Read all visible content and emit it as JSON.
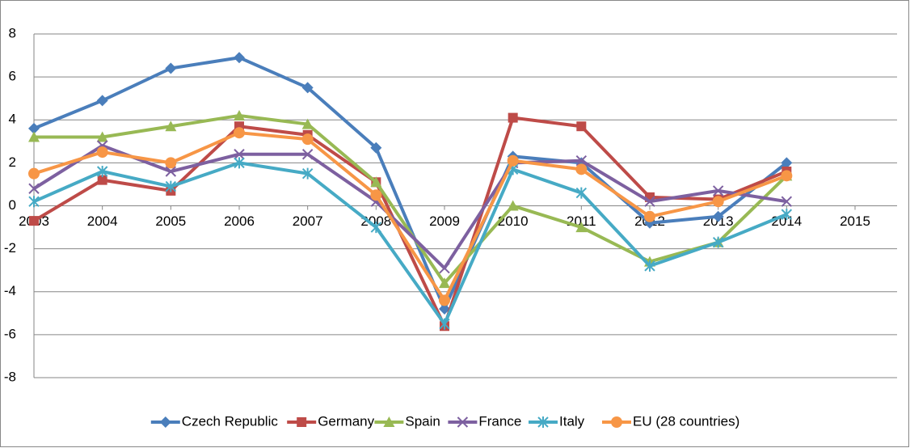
{
  "chart_data": {
    "type": "line",
    "x": [
      2003,
      2004,
      2005,
      2006,
      2007,
      2008,
      2009,
      2010,
      2011,
      2012,
      2013,
      2014
    ],
    "xlim": [
      2003,
      2015
    ],
    "xticks": [
      2003,
      2004,
      2005,
      2006,
      2007,
      2008,
      2009,
      2010,
      2011,
      2012,
      2013,
      2014,
      2015
    ],
    "ylim": [
      -8,
      8
    ],
    "yticks": [
      -8,
      -6,
      -4,
      -2,
      0,
      2,
      4,
      6,
      8
    ],
    "grid": true,
    "legend": "bottom",
    "series": [
      {
        "name": "Czech Republic",
        "color": "#4a7ebb",
        "marker": "diamond",
        "values": [
          3.6,
          4.9,
          6.4,
          6.9,
          5.5,
          2.7,
          -4.8,
          2.3,
          2.0,
          -0.8,
          -0.5,
          2.0
        ]
      },
      {
        "name": "Germany",
        "color": "#be4b48",
        "marker": "square",
        "values": [
          -0.7,
          1.2,
          0.7,
          3.7,
          3.3,
          1.1,
          -5.6,
          4.1,
          3.7,
          0.4,
          0.3,
          1.6
        ]
      },
      {
        "name": "Spain",
        "color": "#98b954",
        "marker": "triangle",
        "values": [
          3.2,
          3.2,
          3.7,
          4.2,
          3.8,
          1.1,
          -3.6,
          0.0,
          -1.0,
          -2.6,
          -1.7,
          1.4
        ]
      },
      {
        "name": "France",
        "color": "#7d60a0",
        "marker": "x",
        "values": [
          0.8,
          2.8,
          1.6,
          2.4,
          2.4,
          0.2,
          -2.9,
          2.0,
          2.1,
          0.2,
          0.7,
          0.2
        ]
      },
      {
        "name": "Italy",
        "color": "#46aac5",
        "marker": "star",
        "values": [
          0.2,
          1.6,
          0.9,
          2.0,
          1.5,
          -1.0,
          -5.5,
          1.7,
          0.6,
          -2.8,
          -1.7,
          -0.4
        ]
      },
      {
        "name": "EU (28 countries)",
        "color": "#f79646",
        "marker": "circle",
        "values": [
          1.5,
          2.5,
          2.0,
          3.4,
          3.1,
          0.5,
          -4.4,
          2.1,
          1.7,
          -0.5,
          0.2,
          1.4
        ]
      }
    ]
  }
}
